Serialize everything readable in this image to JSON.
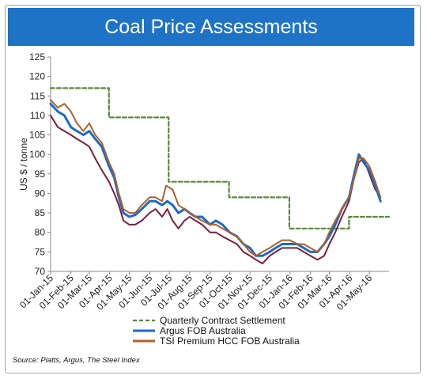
{
  "header": {
    "title": "Coal Price Assessments"
  },
  "source": "Source: Platts, Argus, The Steel Index",
  "colors": {
    "quarterly": "#5a8a3a",
    "argus": "#1a6cc4",
    "tsi": "#b0602a",
    "index": "#7a1e3c"
  },
  "chart_data": {
    "type": "line",
    "ylabel": "US $ / tonne",
    "ylim": [
      70,
      125
    ],
    "yticks": [
      70,
      75,
      80,
      85,
      90,
      95,
      100,
      105,
      110,
      115,
      120,
      125
    ],
    "xlim": [
      "2015-01-01",
      "2016-05-31"
    ],
    "xticks": [
      "2015-01-01",
      "2015-02-01",
      "2015-03-01",
      "2015-04-01",
      "2015-05-01",
      "2015-06-01",
      "2015-07-01",
      "2015-08-01",
      "2015-09-01",
      "2015-10-01",
      "2015-11-01",
      "2015-12-01",
      "2016-01-01",
      "2016-02-01",
      "2016-03-01",
      "2016-04-01",
      "2016-05-01"
    ],
    "xtick_labels": [
      "01-Jan-15",
      "01-Feb-15",
      "01-Mar-15",
      "01-Apr-15",
      "01-May-15",
      "01-Jun-15",
      "01-Jul-15",
      "01-Aug-15",
      "01-Sep-15",
      "01-Oct-15",
      "01-Nov-15",
      "01-Dec-15",
      "01-Jan-16",
      "01-Feb-16",
      "01-Mar-16",
      "01-Apr-16",
      "01-May-16"
    ],
    "grid": false,
    "legend_position": "bottom",
    "series": [
      {
        "name": "Quarterly Contract Settlement",
        "key": "quarterly",
        "style": "dashed",
        "step": true,
        "points": [
          [
            "2015-01-01",
            117
          ],
          [
            "2015-03-31",
            117
          ],
          [
            "2015-03-31",
            109.5
          ],
          [
            "2015-06-30",
            109.5
          ],
          [
            "2015-06-30",
            93
          ],
          [
            "2015-09-30",
            93
          ],
          [
            "2015-09-30",
            89
          ],
          [
            "2015-12-31",
            89
          ],
          [
            "2015-12-31",
            81
          ],
          [
            "2016-03-31",
            81
          ],
          [
            "2016-03-31",
            84
          ],
          [
            "2016-05-31",
            84
          ]
        ]
      },
      {
        "name": "Argus FOB Australia",
        "key": "argus",
        "style": "solid",
        "width": 3,
        "points": [
          [
            "2015-01-01",
            113
          ],
          [
            "2015-01-12",
            111
          ],
          [
            "2015-01-22",
            110
          ],
          [
            "2015-02-01",
            107
          ],
          [
            "2015-02-10",
            106
          ],
          [
            "2015-02-20",
            105
          ],
          [
            "2015-03-01",
            106
          ],
          [
            "2015-03-10",
            104
          ],
          [
            "2015-03-20",
            102
          ],
          [
            "2015-03-31",
            97
          ],
          [
            "2015-04-08",
            94
          ],
          [
            "2015-04-15",
            89
          ],
          [
            "2015-04-22",
            85
          ],
          [
            "2015-05-01",
            84
          ],
          [
            "2015-05-10",
            84.5
          ],
          [
            "2015-05-20",
            86
          ],
          [
            "2015-06-01",
            88
          ],
          [
            "2015-06-10",
            88
          ],
          [
            "2015-06-20",
            87
          ],
          [
            "2015-06-28",
            88
          ],
          [
            "2015-07-06",
            87
          ],
          [
            "2015-07-15",
            85
          ],
          [
            "2015-07-24",
            86
          ],
          [
            "2015-08-01",
            85
          ],
          [
            "2015-08-10",
            84
          ],
          [
            "2015-08-20",
            84
          ],
          [
            "2015-09-01",
            82
          ],
          [
            "2015-09-10",
            83
          ],
          [
            "2015-09-20",
            82
          ],
          [
            "2015-10-01",
            80
          ],
          [
            "2015-10-12",
            79
          ],
          [
            "2015-10-22",
            77
          ],
          [
            "2015-11-01",
            76
          ],
          [
            "2015-11-10",
            74
          ],
          [
            "2015-11-20",
            74
          ],
          [
            "2015-12-01",
            75
          ],
          [
            "2015-12-10",
            76
          ],
          [
            "2015-12-20",
            77
          ],
          [
            "2016-01-01",
            77
          ],
          [
            "2016-01-12",
            77
          ],
          [
            "2016-01-22",
            76
          ],
          [
            "2016-02-01",
            75
          ],
          [
            "2016-02-12",
            75
          ],
          [
            "2016-02-22",
            77
          ],
          [
            "2016-03-01",
            79
          ],
          [
            "2016-03-10",
            82
          ],
          [
            "2016-03-20",
            86
          ],
          [
            "2016-03-31",
            89
          ],
          [
            "2016-04-08",
            95
          ],
          [
            "2016-04-15",
            100
          ],
          [
            "2016-04-22",
            98
          ],
          [
            "2016-05-01",
            96
          ],
          [
            "2016-05-10",
            92
          ],
          [
            "2016-05-18",
            88
          ]
        ]
      },
      {
        "name": "TSI Premium HCC FOB Australia",
        "key": "tsi",
        "style": "solid",
        "width": 2,
        "points": [
          [
            "2015-01-01",
            114
          ],
          [
            "2015-01-12",
            112
          ],
          [
            "2015-01-22",
            113
          ],
          [
            "2015-02-01",
            111
          ],
          [
            "2015-02-10",
            108
          ],
          [
            "2015-02-20",
            106
          ],
          [
            "2015-03-01",
            108
          ],
          [
            "2015-03-10",
            105
          ],
          [
            "2015-03-20",
            103
          ],
          [
            "2015-03-31",
            98
          ],
          [
            "2015-04-08",
            95
          ],
          [
            "2015-04-15",
            90
          ],
          [
            "2015-04-22",
            86
          ],
          [
            "2015-05-01",
            85
          ],
          [
            "2015-05-10",
            85
          ],
          [
            "2015-05-20",
            87
          ],
          [
            "2015-06-01",
            89
          ],
          [
            "2015-06-10",
            89
          ],
          [
            "2015-06-20",
            88
          ],
          [
            "2015-06-26",
            92
          ],
          [
            "2015-07-06",
            91
          ],
          [
            "2015-07-15",
            87
          ],
          [
            "2015-07-24",
            86
          ],
          [
            "2015-08-01",
            85
          ],
          [
            "2015-08-10",
            84
          ],
          [
            "2015-08-20",
            83
          ],
          [
            "2015-09-01",
            82
          ],
          [
            "2015-09-10",
            82
          ],
          [
            "2015-09-20",
            81
          ],
          [
            "2015-10-01",
            80
          ],
          [
            "2015-10-12",
            79
          ],
          [
            "2015-10-22",
            77
          ],
          [
            "2015-11-01",
            75
          ],
          [
            "2015-11-10",
            74
          ],
          [
            "2015-11-20",
            75
          ],
          [
            "2015-12-01",
            76
          ],
          [
            "2015-12-10",
            77
          ],
          [
            "2015-12-20",
            78
          ],
          [
            "2016-01-01",
            78
          ],
          [
            "2016-01-12",
            77
          ],
          [
            "2016-01-22",
            77
          ],
          [
            "2016-02-01",
            76
          ],
          [
            "2016-02-12",
            75
          ],
          [
            "2016-02-22",
            77
          ],
          [
            "2016-03-01",
            80
          ],
          [
            "2016-03-10",
            83
          ],
          [
            "2016-03-20",
            86
          ],
          [
            "2016-03-31",
            89
          ],
          [
            "2016-04-08",
            94
          ],
          [
            "2016-04-15",
            99
          ],
          [
            "2016-04-22",
            99
          ],
          [
            "2016-05-01",
            97
          ],
          [
            "2016-05-10",
            93
          ],
          [
            "2016-05-18",
            89
          ]
        ]
      },
      {
        "key": "index",
        "style": "solid",
        "width": 2,
        "points": [
          [
            "2015-01-01",
            110
          ],
          [
            "2015-01-12",
            107
          ],
          [
            "2015-01-22",
            106
          ],
          [
            "2015-02-01",
            105
          ],
          [
            "2015-02-10",
            104
          ],
          [
            "2015-02-20",
            103
          ],
          [
            "2015-03-01",
            102
          ],
          [
            "2015-03-10",
            99
          ],
          [
            "2015-03-20",
            96
          ],
          [
            "2015-03-31",
            93
          ],
          [
            "2015-04-08",
            90
          ],
          [
            "2015-04-15",
            87
          ],
          [
            "2015-04-22",
            83
          ],
          [
            "2015-05-01",
            82
          ],
          [
            "2015-05-10",
            82
          ],
          [
            "2015-05-20",
            83
          ],
          [
            "2015-06-01",
            85
          ],
          [
            "2015-06-10",
            86
          ],
          [
            "2015-06-20",
            84
          ],
          [
            "2015-06-28",
            86
          ],
          [
            "2015-07-06",
            83
          ],
          [
            "2015-07-15",
            81
          ],
          [
            "2015-07-24",
            83
          ],
          [
            "2015-08-01",
            84
          ],
          [
            "2015-08-10",
            83
          ],
          [
            "2015-08-20",
            82
          ],
          [
            "2015-09-01",
            80
          ],
          [
            "2015-09-10",
            80
          ],
          [
            "2015-09-20",
            79
          ],
          [
            "2015-10-01",
            78
          ],
          [
            "2015-10-12",
            77
          ],
          [
            "2015-10-22",
            75
          ],
          [
            "2015-11-01",
            74
          ],
          [
            "2015-11-10",
            73
          ],
          [
            "2015-11-20",
            72
          ],
          [
            "2015-12-01",
            74
          ],
          [
            "2015-12-10",
            75
          ],
          [
            "2015-12-20",
            76
          ],
          [
            "2016-01-01",
            76
          ],
          [
            "2016-01-12",
            76
          ],
          [
            "2016-01-22",
            75
          ],
          [
            "2016-02-01",
            74
          ],
          [
            "2016-02-12",
            73
          ],
          [
            "2016-02-22",
            74
          ],
          [
            "2016-03-01",
            77
          ],
          [
            "2016-03-10",
            80
          ],
          [
            "2016-03-20",
            84
          ],
          [
            "2016-03-31",
            88
          ],
          [
            "2016-04-08",
            94
          ],
          [
            "2016-04-15",
            98
          ],
          [
            "2016-04-22",
            99
          ],
          [
            "2016-05-01",
            95
          ],
          [
            "2016-05-10",
            91
          ],
          [
            "2016-05-18",
            89
          ]
        ]
      }
    ]
  }
}
